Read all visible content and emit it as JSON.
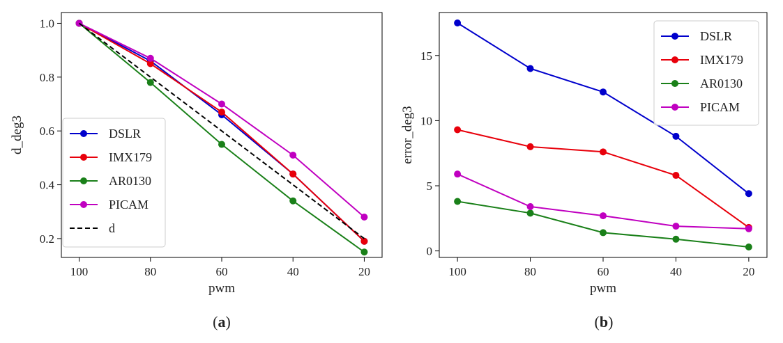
{
  "chart_data": [
    {
      "type": "line",
      "panel_label": "a",
      "title": "",
      "xlabel": "pwm",
      "ylabel": "d_deg3",
      "x": [
        100,
        80,
        60,
        40,
        20
      ],
      "x_tick_labels": [
        "100",
        "80",
        "60",
        "40",
        "20"
      ],
      "y_ticks": [
        0.2,
        0.4,
        0.6,
        0.8,
        1.0
      ],
      "y_tick_labels": [
        "0.2",
        "0.4",
        "0.6",
        "0.8",
        "1.0"
      ],
      "xlim": [
        105,
        15
      ],
      "ylim": [
        0.13,
        1.04
      ],
      "legend_position": "lower-left",
      "grid": false,
      "series": [
        {
          "name": "DSLR",
          "color": "#0000cc",
          "style": "solid",
          "markers": true,
          "values": [
            1.0,
            0.86,
            0.66,
            0.44,
            0.19
          ]
        },
        {
          "name": "IMX179",
          "color": "#e8000b",
          "style": "solid",
          "markers": true,
          "values": [
            1.0,
            0.85,
            0.67,
            0.44,
            0.19
          ]
        },
        {
          "name": "AR0130",
          "color": "#1a8019",
          "style": "solid",
          "markers": true,
          "values": [
            1.0,
            0.78,
            0.55,
            0.34,
            0.15
          ]
        },
        {
          "name": "PICAM",
          "color": "#c000c0",
          "style": "solid",
          "markers": true,
          "values": [
            1.0,
            0.87,
            0.7,
            0.51,
            0.28
          ]
        },
        {
          "name": "d",
          "color": "#000000",
          "style": "dashed",
          "markers": false,
          "values": [
            1.0,
            0.8,
            0.6,
            0.4,
            0.2
          ]
        }
      ]
    },
    {
      "type": "line",
      "panel_label": "b",
      "title": "",
      "xlabel": "pwm",
      "ylabel": "error_deg3",
      "x": [
        100,
        80,
        60,
        40,
        20
      ],
      "x_tick_labels": [
        "100",
        "80",
        "60",
        "40",
        "20"
      ],
      "y_ticks": [
        0,
        5,
        10,
        15
      ],
      "y_tick_labels": [
        "0",
        "5",
        "10",
        "15"
      ],
      "xlim": [
        105,
        15
      ],
      "ylim": [
        -0.5,
        18.3
      ],
      "legend_position": "top-right",
      "grid": false,
      "series": [
        {
          "name": "DSLR",
          "color": "#0000cc",
          "style": "solid",
          "markers": true,
          "values": [
            17.5,
            14.0,
            12.2,
            8.8,
            4.4
          ]
        },
        {
          "name": "IMX179",
          "color": "#e8000b",
          "style": "solid",
          "markers": true,
          "values": [
            9.3,
            8.0,
            7.6,
            5.8,
            1.8
          ]
        },
        {
          "name": "AR0130",
          "color": "#1a8019",
          "style": "solid",
          "markers": true,
          "values": [
            3.8,
            2.9,
            1.4,
            0.9,
            0.3
          ]
        },
        {
          "name": "PICAM",
          "color": "#c000c0",
          "style": "solid",
          "markers": true,
          "values": [
            5.9,
            3.4,
            2.7,
            1.9,
            1.7
          ]
        }
      ]
    }
  ]
}
